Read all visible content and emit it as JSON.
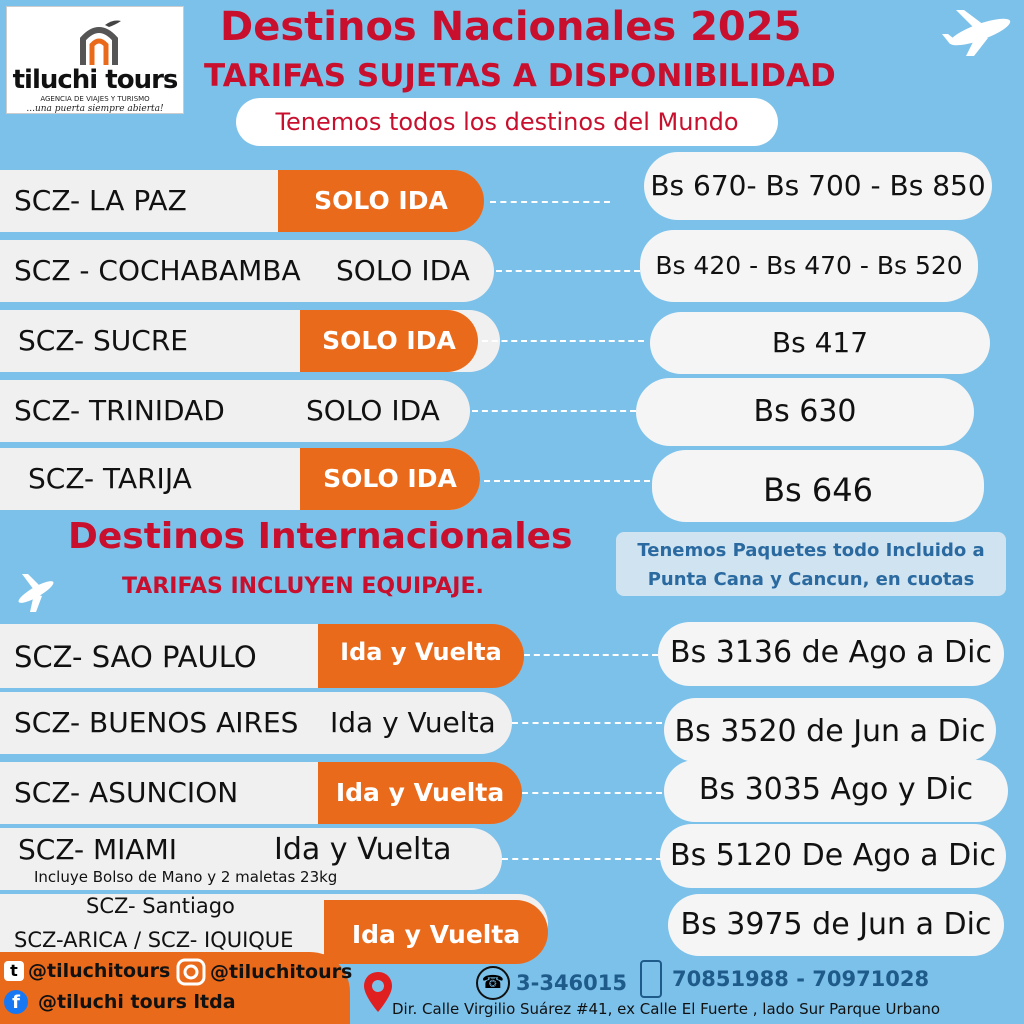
{
  "brand": {
    "name": "tiluchi tours",
    "tagline": "AGENCIA DE VIAJES Y TURISMO",
    "slogan": "...una puerta siempre abierta!"
  },
  "header": {
    "title": "Destinos Nacionales 2025",
    "subtitle": "TARIFAS SUJETAS A DISPONIBILIDAD",
    "world": "Tenemos todos los destinos del Mundo"
  },
  "national": [
    {
      "route": "SCZ- LA PAZ",
      "type": "SOLO IDA",
      "price": "Bs 670- Bs 700 - Bs 850"
    },
    {
      "route": "SCZ - COCHABAMBA",
      "type": "SOLO IDA",
      "price": "Bs 420 - Bs 470 - Bs 520"
    },
    {
      "route": "SCZ- SUCRE",
      "type": "SOLO IDA",
      "price": "Bs 417"
    },
    {
      "route": "SCZ- TRINIDAD",
      "type": "SOLO IDA",
      "price": "Bs 630"
    },
    {
      "route": "SCZ- TARIJA",
      "type": "SOLO IDA",
      "price": "Bs 646"
    }
  ],
  "international": {
    "title": "Destinos Internacionales",
    "subtitle": "TARIFAS INCLUYEN EQUIPAJE.",
    "promo": "Tenemos Paquetes todo Incluido a Punta Cana y Cancun, en cuotas",
    "routes": [
      {
        "route": "SCZ- SAO PAULO",
        "type": "Ida y Vuelta",
        "price": "Bs 3136 de Ago a Dic"
      },
      {
        "route": "SCZ- BUENOS AIRES",
        "type": "Ida y Vuelta",
        "price": "Bs 3520 de Jun a Dic"
      },
      {
        "route": "SCZ- ASUNCION",
        "type": "Ida y Vuelta",
        "price": "Bs 3035 Ago y Dic"
      },
      {
        "route": "SCZ- MIAMI",
        "type": "Ida y Vuelta",
        "note": "Incluye Bolso de Mano y 2 maletas 23kg",
        "price": "Bs 5120 De Ago a Dic"
      },
      {
        "route": "SCZ- Santiago",
        "route2": "SCZ-ARICA / SCZ- IQUIQUE",
        "type": "Ida y Vuelta",
        "price": "Bs 3975 de Jun a Dic"
      }
    ]
  },
  "footer": {
    "tiktok": "@tiluchitours",
    "instagram": "@tiluchitours",
    "facebook": "@tiluchi tours ltda",
    "phone": "3-346015",
    "mobile": "70851988 - 70971028",
    "address": "Dir. Calle Virgilio Suárez #41, ex Calle El Fuerte , lado Sur Parque Urbano"
  },
  "colors": {
    "orange": "#ea6a1b",
    "red": "#c8102e",
    "blue": "#7cc1ea",
    "navy": "#1e5b8a"
  }
}
